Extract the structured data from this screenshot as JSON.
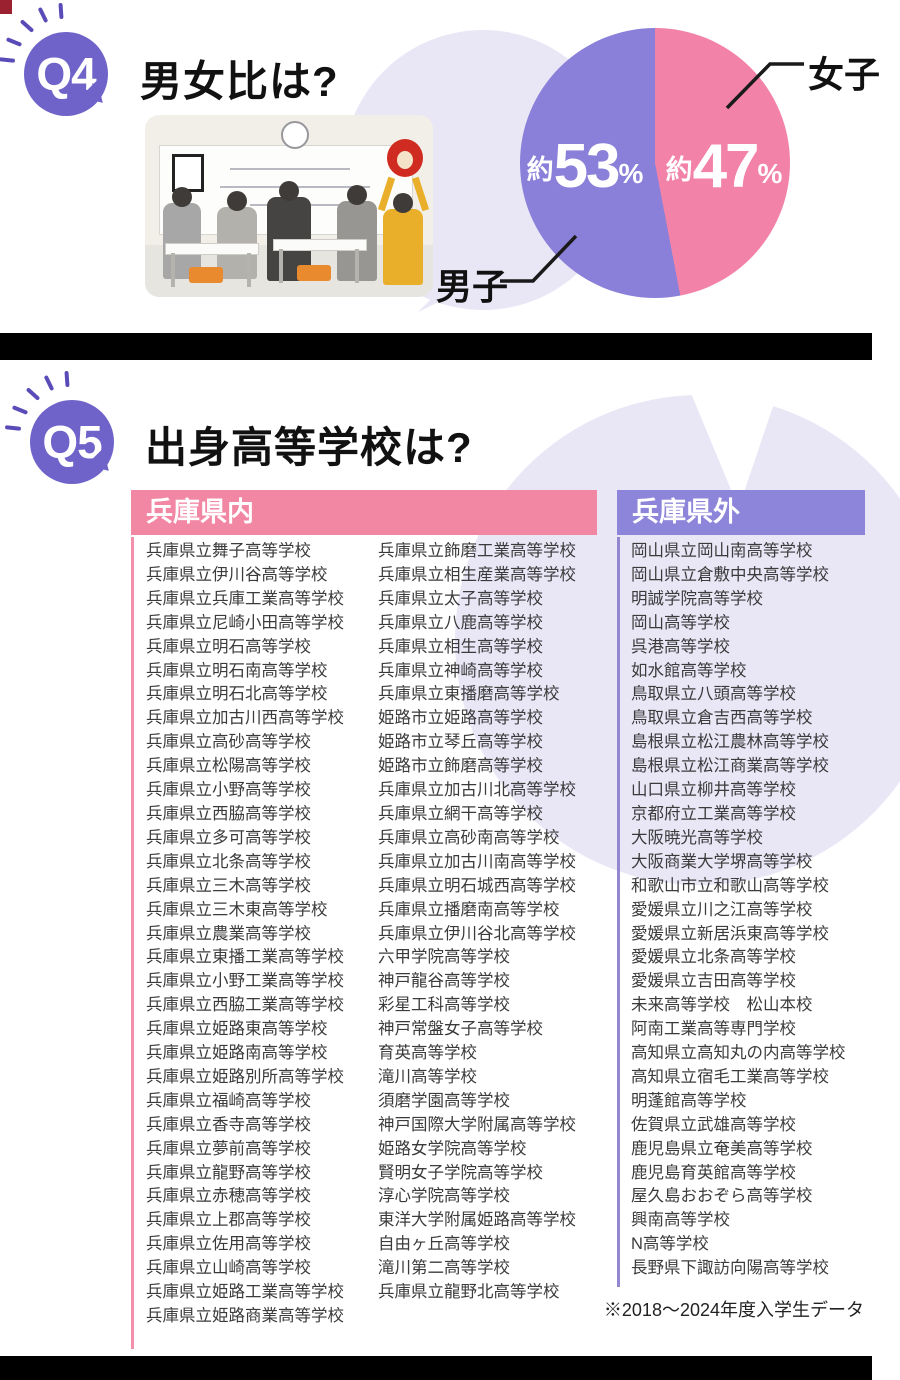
{
  "q4": {
    "badge": "Q4",
    "title": "男女比は?",
    "pie": {
      "male_label": "男子",
      "female_label": "女子",
      "male_prefix": "約",
      "male_value": "53",
      "male_unit": "%",
      "female_prefix": "約",
      "female_value": "47",
      "female_unit": "%",
      "male_color": "#8b80d9",
      "female_color": "#f382a8"
    }
  },
  "q5": {
    "badge": "Q5",
    "title": "出身高等学校は?",
    "inside": {
      "header": "兵庫県内",
      "header_color": "#f287a3",
      "col1": [
        "兵庫県立舞子高等学校",
        "兵庫県立伊川谷高等学校",
        "兵庫県立兵庫工業高等学校",
        "兵庫県立尼崎小田高等学校",
        "兵庫県立明石高等学校",
        "兵庫県立明石南高等学校",
        "兵庫県立明石北高等学校",
        "兵庫県立加古川西高等学校",
        "兵庫県立高砂高等学校",
        "兵庫県立松陽高等学校",
        "兵庫県立小野高等学校",
        "兵庫県立西脇高等学校",
        "兵庫県立多可高等学校",
        "兵庫県立北条高等学校",
        "兵庫県立三木高等学校",
        "兵庫県立三木東高等学校",
        "兵庫県立農業高等学校",
        "兵庫県立東播工業高等学校",
        "兵庫県立小野工業高等学校",
        "兵庫県立西脇工業高等学校",
        "兵庫県立姫路東高等学校",
        "兵庫県立姫路南高等学校",
        "兵庫県立姫路別所高等学校",
        "兵庫県立福崎高等学校",
        "兵庫県立香寺高等学校",
        "兵庫県立夢前高等学校",
        "兵庫県立龍野高等学校",
        "兵庫県立赤穂高等学校",
        "兵庫県立上郡高等学校",
        "兵庫県立佐用高等学校",
        "兵庫県立山崎高等学校",
        "兵庫県立姫路工業高等学校",
        "兵庫県立姫路商業高等学校"
      ],
      "col2": [
        "兵庫県立飾磨工業高等学校",
        "兵庫県立相生産業高等学校",
        "兵庫県立太子高等学校",
        "兵庫県立八鹿高等学校",
        "兵庫県立相生高等学校",
        "兵庫県立神崎高等学校",
        "兵庫県立東播磨高等学校",
        "姫路市立姫路高等学校",
        "姫路市立琴丘高等学校",
        "姫路市立飾磨高等学校",
        "兵庫県立加古川北高等学校",
        "兵庫県立網干高等学校",
        "兵庫県立高砂南高等学校",
        "兵庫県立加古川南高等学校",
        "兵庫県立明石城西高等学校",
        "兵庫県立播磨南高等学校",
        "兵庫県立伊川谷北高等学校",
        "六甲学院高等学校",
        "神戸龍谷高等学校",
        "彩星工科高等学校",
        "神戸常盤女子高等学校",
        "育英高等学校",
        "滝川高等学校",
        "須磨学園高等学校",
        "神戸国際大学附属高等学校",
        "姫路女学院高等学校",
        "賢明女子学院高等学校",
        "淳心学院高等学校",
        "東洋大学附属姫路高等学校",
        "自由ヶ丘高等学校",
        "滝川第二高等学校",
        "兵庫県立龍野北高等学校"
      ]
    },
    "outside": {
      "header": "兵庫県外",
      "header_color": "#8d85da",
      "col": [
        "岡山県立岡山南高等学校",
        "岡山県立倉敷中央高等学校",
        "明誠学院高等学校",
        "岡山高等学校",
        "呉港高等学校",
        "如水館高等学校",
        "鳥取県立八頭高等学校",
        "鳥取県立倉吉西高等学校",
        "島根県立松江農林高等学校",
        "島根県立松江商業高等学校",
        "山口県立柳井高等学校",
        "京都府立工業高等学校",
        "大阪暁光高等学校",
        "大阪商業大学堺高等学校",
        "和歌山市立和歌山高等学校",
        "愛媛県立川之江高等学校",
        "愛媛県立新居浜東高等学校",
        "愛媛県立北条高等学校",
        "愛媛県立吉田高等学校",
        "未来高等学校　松山本校",
        "阿南工業高等専門学校",
        "高知県立高知丸の内高等学校",
        "高知県立宿毛工業高等学校",
        "明蓬館高等学校",
        "佐賀県立武雄高等学校",
        "鹿児島県立奄美高等学校",
        "鹿児島育英館高等学校",
        "屋久島おおぞら高等学校",
        "興南高等学校",
        "N高等学校",
        "長野県下諏訪向陽高等学校"
      ]
    },
    "footnote": "※2018〜2024年度入学生データ"
  },
  "chart_data": {
    "type": "pie",
    "title": "男女比",
    "labels": [
      "男子",
      "女子"
    ],
    "values": [
      53,
      47
    ],
    "unit": "%",
    "value_prefix": "約",
    "annotations": [
      "約53%",
      "約47%"
    ],
    "colors": [
      "#8b80d9",
      "#f382a8"
    ],
    "start_angle_deg": 0,
    "direction": "clockwise",
    "legend_position": "callout-labels"
  }
}
